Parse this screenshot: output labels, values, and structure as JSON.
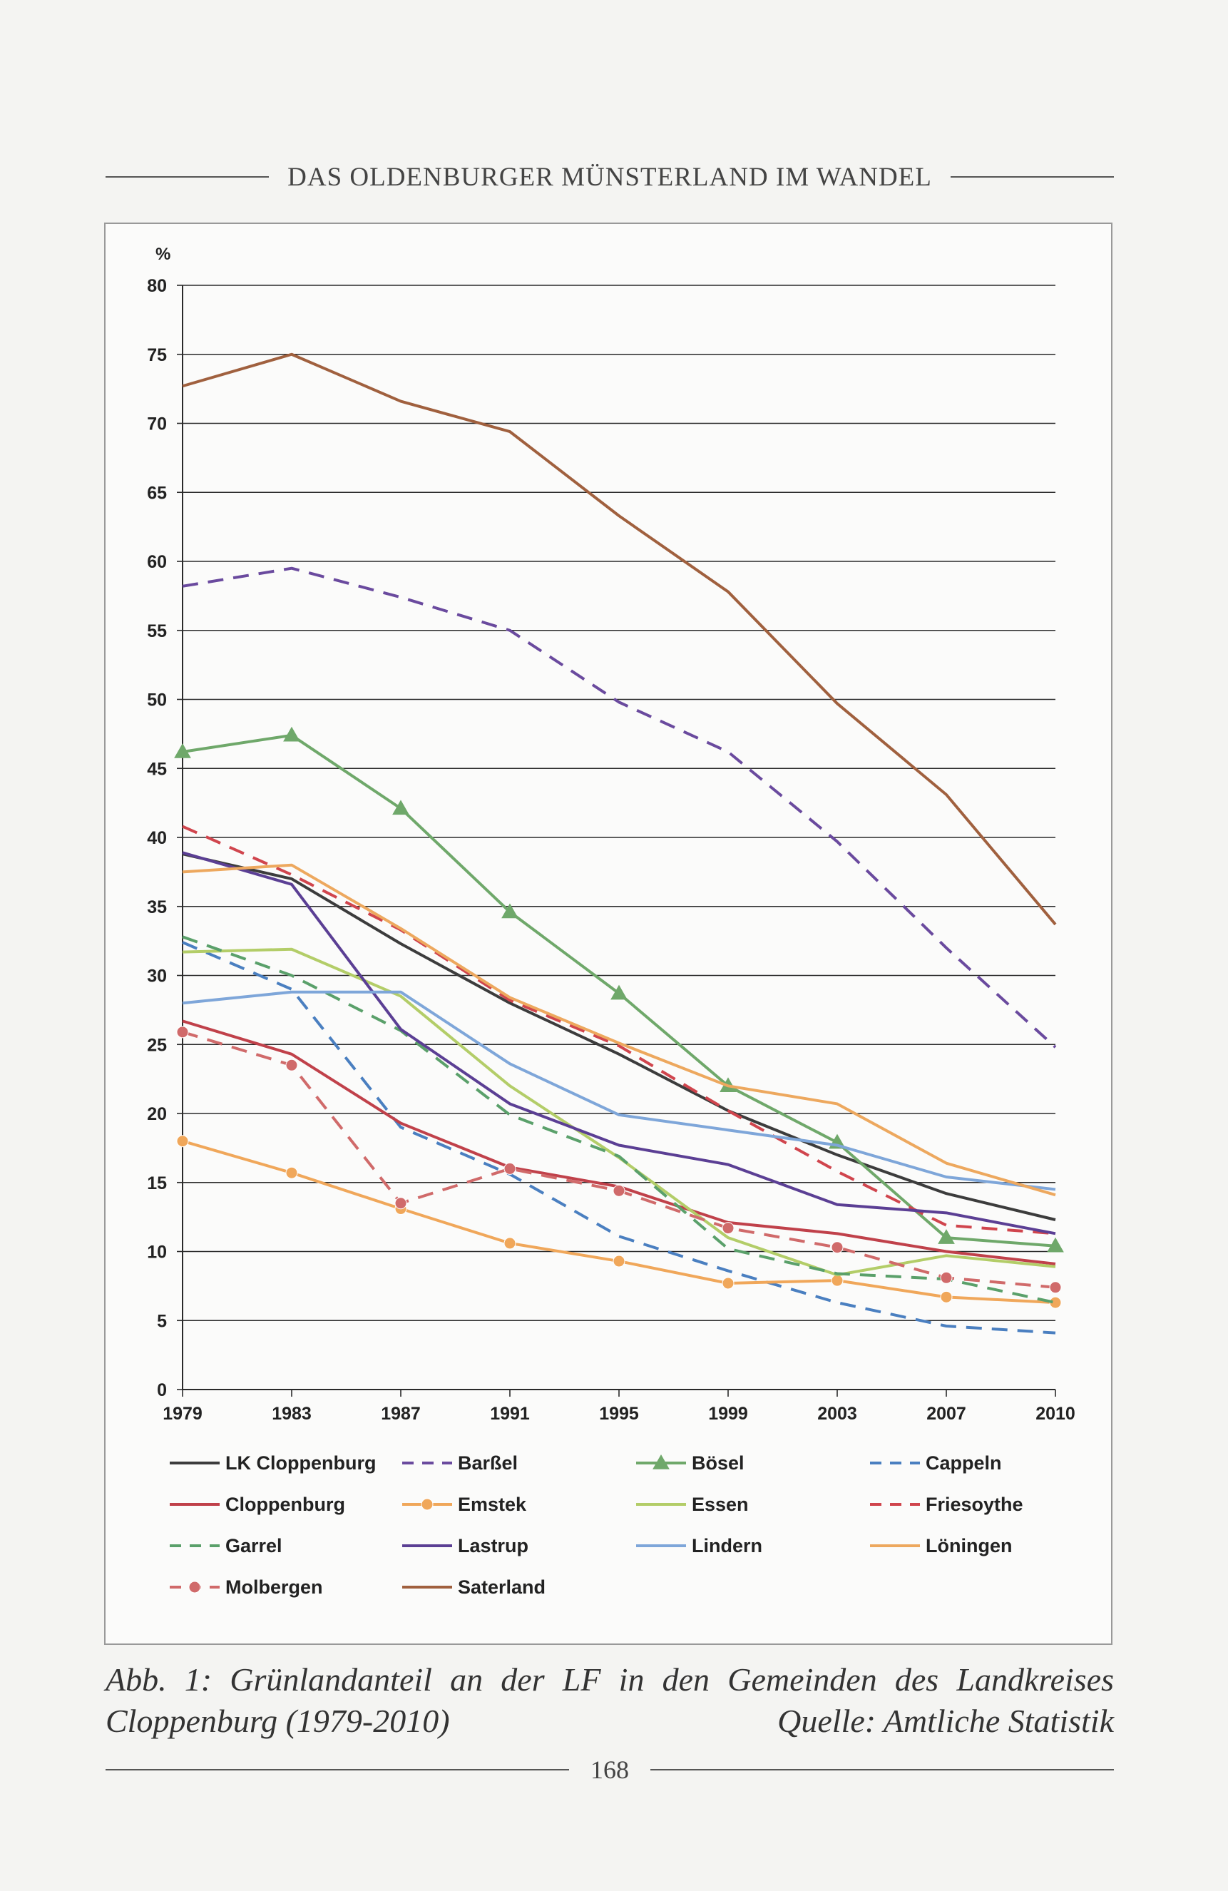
{
  "header": {
    "title": "DAS OLDENBURGER MÜNSTERLAND IM WANDEL"
  },
  "caption": {
    "line1": "Abb. 1: Grünlandanteil an der LF in den Gemeinden des Landkreises",
    "line2_left": "Cloppenburg (1979-2010)",
    "line2_right": "Quelle: Amtliche Statistik"
  },
  "footer": {
    "page_number": "168"
  },
  "chart_data": {
    "type": "line",
    "title": "",
    "xlabel": "",
    "ylabel": "%",
    "x": [
      "1979",
      "1983",
      "1987",
      "1991",
      "1995",
      "1999",
      "2003",
      "2007",
      "2010"
    ],
    "ylim": [
      0,
      80
    ],
    "yticks": [
      0,
      5,
      10,
      15,
      20,
      25,
      30,
      35,
      40,
      45,
      50,
      55,
      60,
      65,
      70,
      75,
      80
    ],
    "grid": true,
    "legend_position": "bottom",
    "series": [
      {
        "name": "LK Cloppenburg",
        "color": "#3c3c3c",
        "dash": "solid",
        "marker": "none",
        "values": [
          38.8,
          37.0,
          32.3,
          28.0,
          24.3,
          20.2,
          17.0,
          14.2,
          12.3
        ]
      },
      {
        "name": "Barßel",
        "color": "#6a4a9e",
        "dash": "dashed",
        "marker": "none",
        "values": [
          58.2,
          59.5,
          57.4,
          55.0,
          49.8,
          46.2,
          39.7,
          32.0,
          24.8
        ]
      },
      {
        "name": "Bösel",
        "color": "#6fa86a",
        "dash": "solid",
        "marker": "triangle",
        "values": [
          46.2,
          47.4,
          42.1,
          34.6,
          28.7,
          22.0,
          17.9,
          11.0,
          10.4
        ]
      },
      {
        "name": "Cappeln",
        "color": "#4a7fc0",
        "dash": "dashed",
        "marker": "none",
        "values": [
          32.4,
          29.0,
          19.0,
          15.6,
          11.1,
          8.6,
          6.3,
          4.6,
          4.1
        ]
      },
      {
        "name": "Cloppenburg",
        "color": "#c0414a",
        "dash": "solid",
        "marker": "none",
        "values": [
          26.7,
          24.3,
          19.3,
          16.1,
          14.7,
          12.1,
          11.3,
          10.0,
          9.1
        ]
      },
      {
        "name": "Emstek",
        "color": "#f0a75a",
        "dash": "solid",
        "marker": "circle",
        "values": [
          18.0,
          15.7,
          13.1,
          10.6,
          9.3,
          7.7,
          7.9,
          6.7,
          6.3
        ]
      },
      {
        "name": "Essen",
        "color": "#b3cd68",
        "dash": "solid",
        "marker": "none",
        "values": [
          31.7,
          31.9,
          28.5,
          22.0,
          16.8,
          11.0,
          8.3,
          9.7,
          8.9
        ]
      },
      {
        "name": "Friesoythe",
        "color": "#d0454d",
        "dash": "dashed",
        "marker": "none",
        "values": [
          40.8,
          37.3,
          33.3,
          28.2,
          24.9,
          20.2,
          15.8,
          11.9,
          11.3
        ]
      },
      {
        "name": "Garrel",
        "color": "#5aa06a",
        "dash": "dashed",
        "marker": "none",
        "values": [
          32.8,
          30.0,
          26.0,
          19.9,
          16.9,
          10.2,
          8.4,
          8.0,
          6.3
        ]
      },
      {
        "name": "Lastrup",
        "color": "#5b3f94",
        "dash": "solid",
        "marker": "none",
        "values": [
          38.9,
          36.6,
          26.1,
          20.7,
          17.7,
          16.3,
          13.4,
          12.8,
          11.3
        ]
      },
      {
        "name": "Lindern",
        "color": "#7ea6d9",
        "dash": "solid",
        "marker": "none",
        "values": [
          28.0,
          28.8,
          28.8,
          23.6,
          19.9,
          18.8,
          17.7,
          15.4,
          14.5
        ]
      },
      {
        "name": "Löningen",
        "color": "#eda85e",
        "dash": "solid",
        "marker": "none",
        "values": [
          37.5,
          38.0,
          33.4,
          28.4,
          25.1,
          22.0,
          20.7,
          16.4,
          14.1
        ]
      },
      {
        "name": "Molbergen",
        "color": "#d06a6a",
        "dash": "dashed",
        "marker": "circle",
        "values": [
          25.9,
          23.5,
          13.5,
          16.0,
          14.4,
          11.7,
          10.3,
          8.1,
          7.4
        ]
      },
      {
        "name": "Saterland",
        "color": "#a0603e",
        "dash": "solid",
        "marker": "none",
        "values": [
          72.7,
          75.0,
          71.6,
          69.4,
          63.3,
          57.8,
          49.7,
          43.1,
          33.7
        ]
      }
    ]
  }
}
